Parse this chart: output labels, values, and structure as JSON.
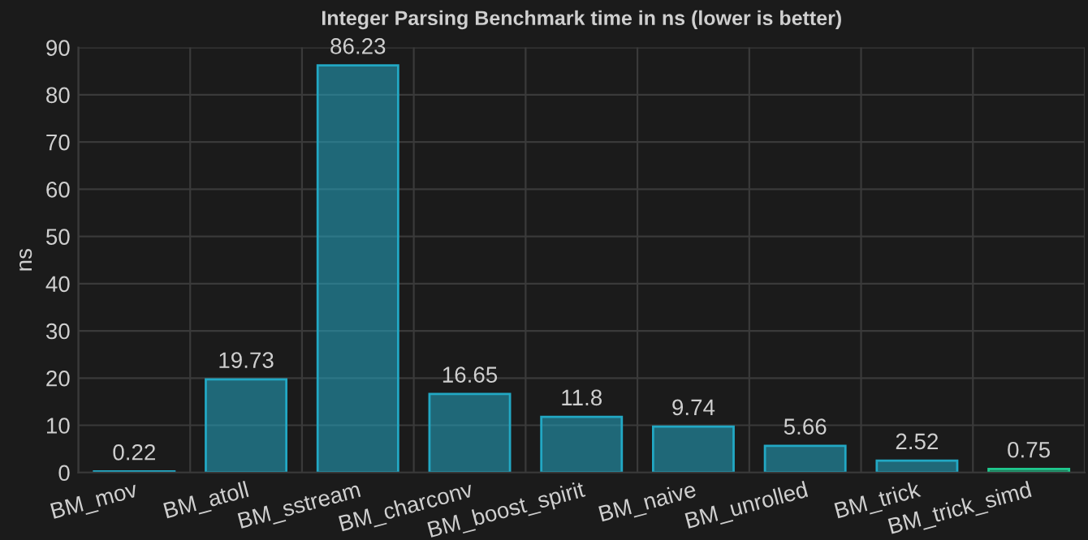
{
  "chart_data": {
    "type": "bar",
    "title": "Integer Parsing Benchmark time in ns (lower is better)",
    "ylabel": "ns",
    "categories": [
      "BM_mov",
      "BM_atoll",
      "BM_sstream",
      "BM_charconv",
      "BM_boost_spirit",
      "BM_naive",
      "BM_unrolled",
      "BM_trick",
      "BM_trick_simd"
    ],
    "values": [
      0.22,
      19.73,
      86.23,
      16.65,
      11.8,
      9.74,
      5.66,
      2.52,
      0.75
    ],
    "colors": [
      "#22a8c4",
      "#22a8c4",
      "#22a8c4",
      "#22a8c4",
      "#22a8c4",
      "#22a8c4",
      "#22a8c4",
      "#22a8c4",
      "#1fc98e"
    ],
    "ylim": [
      0,
      90
    ],
    "yticks": [
      0,
      10,
      20,
      30,
      40,
      50,
      60,
      70,
      80,
      90
    ],
    "grid": true,
    "data_labels": true
  }
}
